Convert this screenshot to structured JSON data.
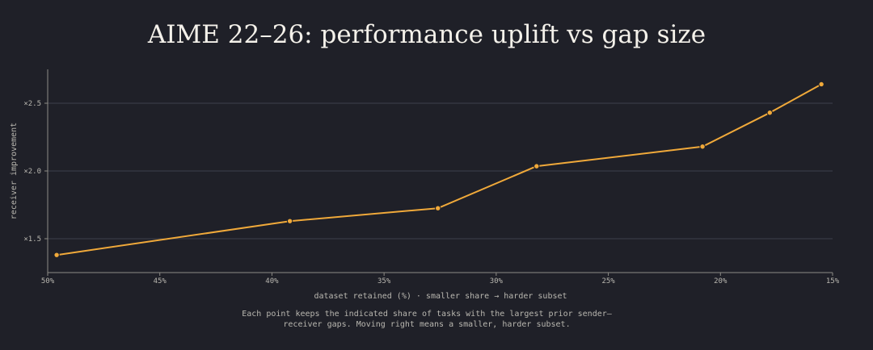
{
  "chart_data": {
    "type": "line",
    "title": "AIME 22–26: performance uplift vs gap size",
    "xlabel": "dataset retained (%) · smaller share → harder subset",
    "ylabel": "receiver improvement",
    "x_reversed": true,
    "xlim": [
      50,
      15
    ],
    "ylim": [
      1.25,
      2.75
    ],
    "x_ticks": [
      50,
      45,
      40,
      35,
      30,
      25,
      20,
      15
    ],
    "x_tick_labels": [
      "50%",
      "45%",
      "40%",
      "35%",
      "30%",
      "25%",
      "20%",
      "15%"
    ],
    "y_ticks": [
      1.5,
      2.0,
      2.5
    ],
    "y_tick_labels": [
      "×1.5",
      "×2.0",
      "×2.5"
    ],
    "grid": "horizontal",
    "series": [
      {
        "color": "#f0a93a",
        "x": [
          49.6,
          39.2,
          32.6,
          28.2,
          20.8,
          17.8,
          15.5
        ],
        "y": [
          1.38,
          1.63,
          1.725,
          2.035,
          2.18,
          2.43,
          2.64
        ]
      }
    ],
    "caption": [
      "Each point keeps the indicated share of tasks with the largest prior sender–",
      "receiver gaps. Moving right means a smaller, harder subset."
    ]
  }
}
